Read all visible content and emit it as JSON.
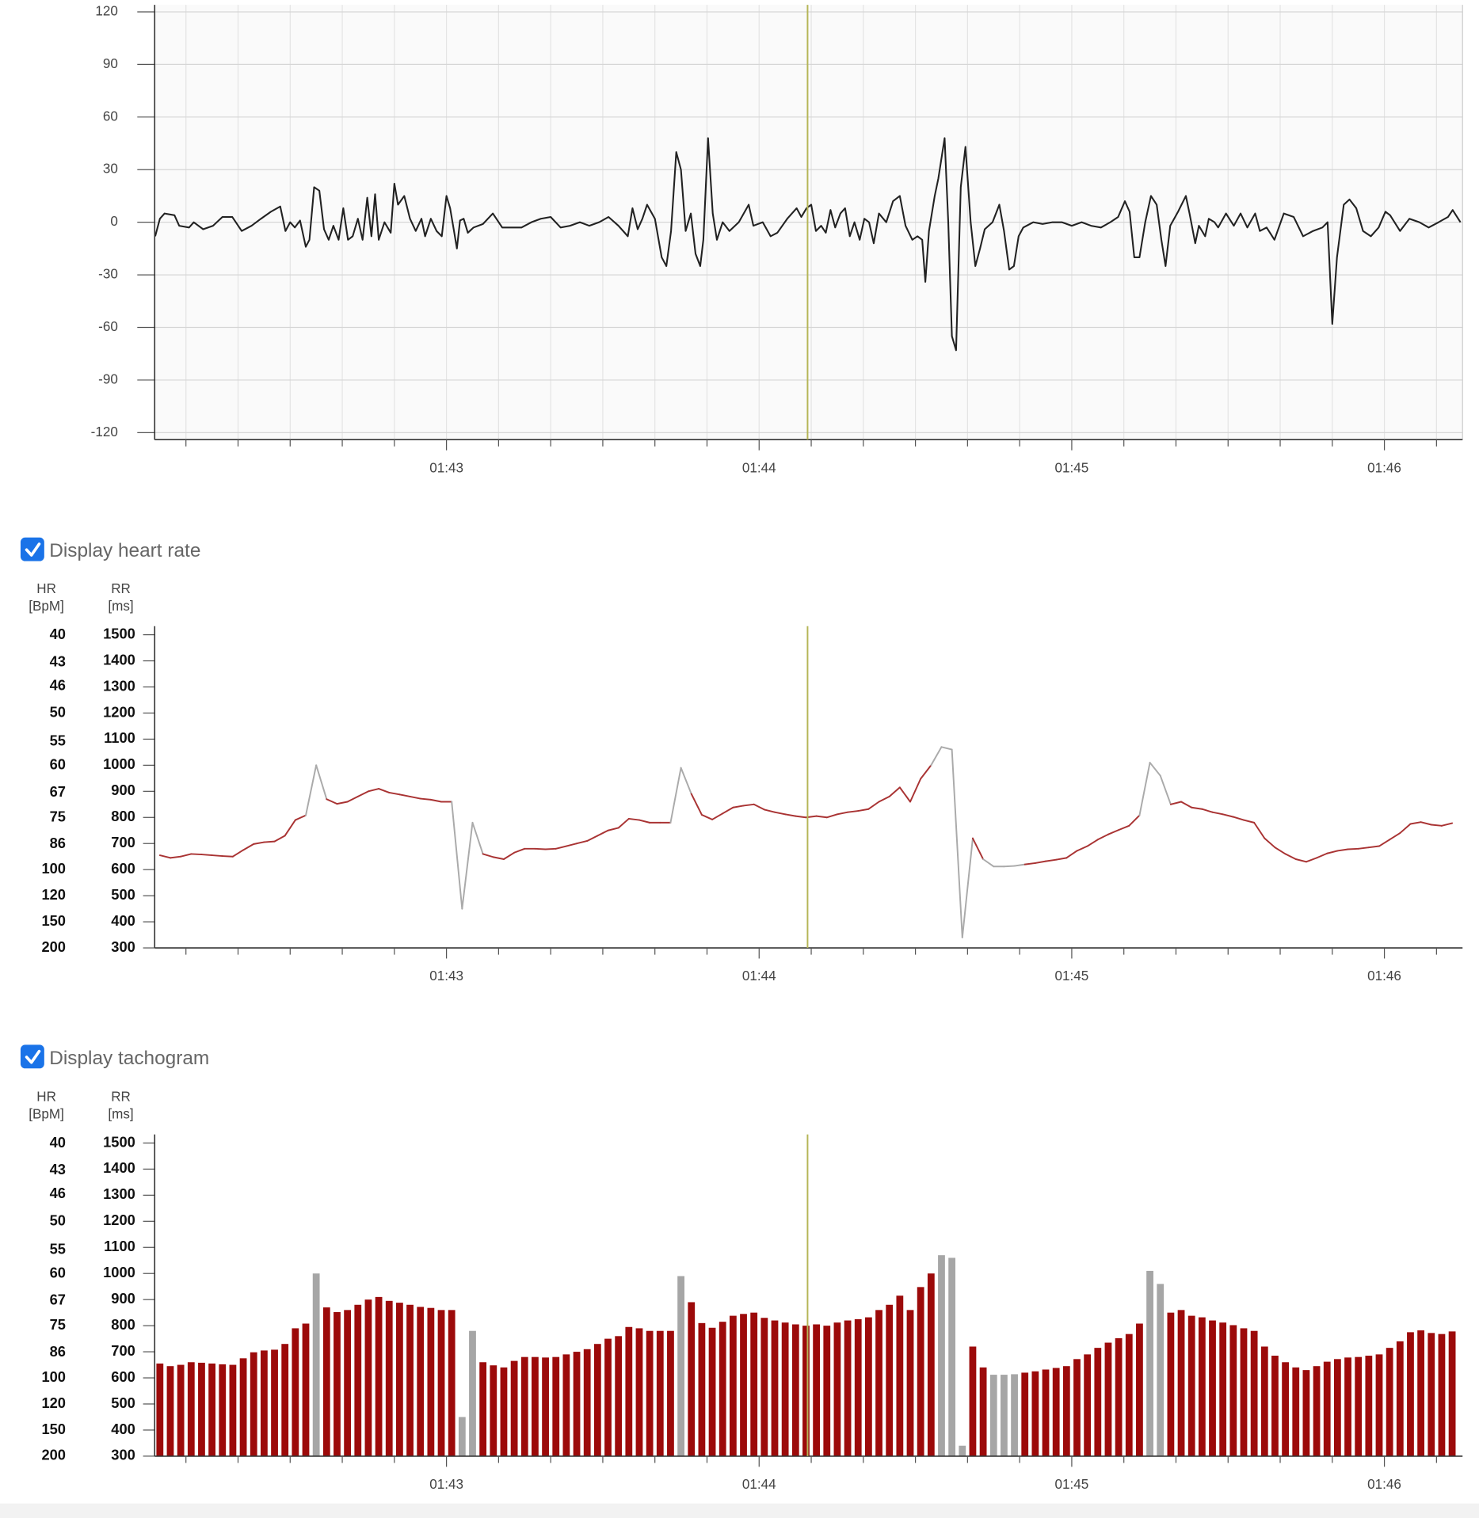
{
  "controls": [
    {
      "label": "Display heart rate",
      "checked": true
    },
    {
      "label": "Display tachogram",
      "checked": true
    }
  ],
  "chart_data": [
    {
      "type": "line",
      "color": "#222222",
      "background": "#fafafa",
      "grid": true,
      "xlim": [
        6124,
        6375
      ],
      "ylim": [
        -124,
        124
      ],
      "xticks": [
        {
          "value": 6180,
          "label": "01:43"
        },
        {
          "value": 6240,
          "label": "01:44"
        },
        {
          "value": 6300,
          "label": "01:45"
        },
        {
          "value": 6360,
          "label": "01:46"
        }
      ],
      "xminorticks": [
        6130,
        6140,
        6150,
        6160,
        6170,
        6190,
        6200,
        6210,
        6220,
        6230,
        6250,
        6260,
        6270,
        6280,
        6290,
        6310,
        6320,
        6330,
        6340,
        6350,
        6370
      ],
      "yticks": [
        -120,
        -90,
        -60,
        -30,
        0,
        30,
        60,
        90,
        120
      ],
      "cursor": {
        "x": 6249.3,
        "color": "#b5b556"
      },
      "x": [
        6124.1,
        6125,
        6125.9,
        6127.8,
        6128.7,
        6130.6,
        6131.5,
        6133.3,
        6135.2,
        6137,
        6138.9,
        6140.7,
        6142.6,
        6144.4,
        6146.3,
        6148.1,
        6149.1,
        6150,
        6150.9,
        6151.9,
        6153,
        6153.7,
        6154.6,
        6155.6,
        6156.5,
        6157.4,
        6158.3,
        6159.3,
        6160.2,
        6161.1,
        6162,
        6163,
        6163.9,
        6164.8,
        6165.6,
        6166.3,
        6167,
        6168.1,
        6169.3,
        6170,
        6170.7,
        6171.9,
        6173,
        6174.1,
        6175.2,
        6175.9,
        6177,
        6178.1,
        6179.1,
        6180,
        6180.7,
        6181.5,
        6182,
        6182.6,
        6183.3,
        6184.1,
        6185.2,
        6187,
        6188.9,
        6190.7,
        6194.4,
        6196.3,
        6198.1,
        6200,
        6201.9,
        6203.7,
        6205.6,
        6207.4,
        6209.3,
        6211.1,
        6213,
        6214.8,
        6215.7,
        6216.7,
        6217.6,
        6218.5,
        6220,
        6221.3,
        6222.2,
        6223.1,
        6224.1,
        6225,
        6225.9,
        6226.9,
        6227.8,
        6228.7,
        6229.3,
        6230.2,
        6231.1,
        6231.9,
        6233,
        6234.3,
        6236.1,
        6238,
        6238.9,
        6240.7,
        6242.2,
        6243.5,
        6245.4,
        6247.2,
        6248.1,
        6249.1,
        6250,
        6250.9,
        6251.9,
        6252.8,
        6253.7,
        6254.6,
        6255.6,
        6256.5,
        6257.4,
        6258.3,
        6259.3,
        6260.2,
        6261.1,
        6262,
        6263,
        6264.4,
        6265.7,
        6267,
        6268.1,
        6269.4,
        6270.4,
        6271.3,
        6271.9,
        6272.6,
        6273.7,
        6274.4,
        6275.6,
        6276.3,
        6277,
        6277.8,
        6278.7,
        6279.6,
        6280.6,
        6281.5,
        6282.4,
        6283.3,
        6284.8,
        6286.1,
        6287,
        6288,
        6288.9,
        6289.8,
        6290.7,
        6292.6,
        6294.4,
        6296.3,
        6298.1,
        6300,
        6301.9,
        6303.7,
        6305.6,
        6307.4,
        6308.9,
        6310.2,
        6311.1,
        6312,
        6313,
        6314.1,
        6315.2,
        6316.3,
        6317.2,
        6318,
        6318.9,
        6320.4,
        6321.9,
        6322.6,
        6323.7,
        6324.4,
        6325.6,
        6326.3,
        6327.4,
        6328.1,
        6329.6,
        6331.1,
        6332.4,
        6333.7,
        6335.2,
        6336.1,
        6337.4,
        6338.9,
        6340.7,
        6342.6,
        6344.4,
        6346.3,
        6348.1,
        6349.1,
        6350,
        6350.9,
        6352.2,
        6353.3,
        6354.6,
        6355.9,
        6357.4,
        6358.9,
        6360.2,
        6361.1,
        6363,
        6364.8,
        6366.7,
        6368.5,
        6370.4,
        6372.2,
        6373.1,
        6374.6
      ],
      "values": [
        -8,
        2,
        5,
        4,
        -2,
        -3,
        0,
        -4,
        -2,
        3,
        3,
        -5,
        -2,
        2,
        6,
        9,
        -5,
        0,
        -3,
        1,
        -14,
        -10,
        20,
        18,
        -4,
        -10,
        -2,
        -10,
        8,
        -10,
        -8,
        2,
        -10,
        14,
        -8,
        16,
        -10,
        0,
        -6,
        22,
        10,
        15,
        2,
        -5,
        2,
        -8,
        2,
        -5,
        -8,
        15,
        8,
        -6,
        -15,
        1,
        2,
        -6,
        -3,
        -1,
        5,
        -3,
        -3,
        0,
        2,
        3,
        -3,
        -2,
        0,
        -2,
        0,
        3,
        -2,
        -8,
        8,
        -4,
        2,
        10,
        2,
        -20,
        -25,
        -5,
        40,
        30,
        -5,
        5,
        -18,
        -25,
        -10,
        48,
        5,
        -10,
        0,
        -5,
        0,
        10,
        -2,
        0,
        -8,
        -6,
        2,
        8,
        3,
        8,
        10,
        -5,
        -2,
        -6,
        7,
        -3,
        5,
        8,
        -8,
        0,
        -10,
        2,
        0,
        -12,
        5,
        0,
        12,
        15,
        -2,
        -10,
        -8,
        -10,
        -34,
        -5,
        15,
        25,
        48,
        0,
        -65,
        -73,
        20,
        43,
        0,
        -25,
        -15,
        -4,
        0,
        10,
        -5,
        -27,
        -25,
        -8,
        -3,
        0,
        -1,
        0,
        0,
        -2,
        0,
        -2,
        -3,
        0,
        3,
        12,
        6,
        -20,
        -20,
        0,
        15,
        10,
        -10,
        -25,
        -2,
        6,
        15,
        5,
        -12,
        -2,
        -8,
        2,
        0,
        -3,
        5,
        -2,
        5,
        -3,
        5,
        -5,
        -3,
        -10,
        5,
        3,
        -8,
        -5,
        -3,
        0,
        -58,
        -20,
        10,
        13,
        8,
        -5,
        -8,
        -3,
        6,
        4,
        -5,
        2,
        0,
        -3,
        0,
        3,
        7,
        0
      ]
    },
    {
      "type": "line",
      "color": "#a93333",
      "artifact_color": "#aaaaaa",
      "grid": false,
      "xlim": [
        6124,
        6375
      ],
      "ylim": [
        300,
        1533
      ],
      "y2lim": [
        39.1,
        200
      ],
      "y2scale": "reciprocal",
      "ylabel": [
        "RR",
        "[ms]"
      ],
      "y2label": [
        "HR",
        "[BpM]"
      ],
      "xticks": [
        {
          "value": 6180,
          "label": "01:43"
        },
        {
          "value": 6240,
          "label": "01:44"
        },
        {
          "value": 6300,
          "label": "01:45"
        },
        {
          "value": 6360,
          "label": "01:46"
        }
      ],
      "xminorticks": [
        6130,
        6140,
        6150,
        6160,
        6170,
        6190,
        6200,
        6210,
        6220,
        6230,
        6250,
        6260,
        6270,
        6280,
        6290,
        6310,
        6320,
        6330,
        6340,
        6350,
        6370
      ],
      "yticks": [
        300,
        400,
        500,
        600,
        700,
        800,
        900,
        1000,
        1100,
        1200,
        1300,
        1400,
        1500
      ],
      "y2ticks": [
        40,
        43,
        46,
        50,
        55,
        60,
        67,
        75,
        86,
        100,
        120,
        150,
        200
      ],
      "cursor": {
        "x": 6249.3,
        "color": "#b5b556"
      },
      "artifacts": [
        15,
        29,
        30,
        50,
        75,
        76,
        77,
        80,
        81,
        82,
        95,
        96
      ],
      "x": [
        6125,
        6127,
        6129,
        6131,
        6133,
        6135,
        6137,
        6139,
        6141,
        6143,
        6145,
        6147,
        6149,
        6151,
        6153,
        6155,
        6157,
        6159,
        6161,
        6163,
        6165,
        6167,
        6169,
        6171,
        6173,
        6175,
        6177,
        6179,
        6181,
        6183,
        6185,
        6187,
        6189,
        6191,
        6193,
        6195,
        6197,
        6199,
        6201,
        6203,
        6205,
        6207,
        6209,
        6211,
        6213,
        6215,
        6217,
        6219,
        6221,
        6223,
        6225,
        6227,
        6229,
        6231,
        6233,
        6235,
        6237,
        6239,
        6241,
        6243,
        6245,
        6247,
        6249,
        6251,
        6253,
        6255,
        6257,
        6259,
        6261,
        6263,
        6265,
        6267,
        6269,
        6271,
        6273,
        6275,
        6277,
        6279,
        6281,
        6283,
        6285,
        6287,
        6289,
        6291,
        6293,
        6295,
        6297,
        6299,
        6301,
        6303,
        6305,
        6307,
        6309,
        6311,
        6313,
        6315,
        6317,
        6319,
        6321,
        6323,
        6325,
        6327,
        6329,
        6331,
        6333,
        6335,
        6337,
        6339,
        6341,
        6343,
        6345,
        6347,
        6349,
        6351,
        6353,
        6355,
        6357,
        6359,
        6361,
        6363,
        6365,
        6367,
        6369,
        6371,
        6373
      ],
      "values": [
        655,
        645,
        650,
        660,
        658,
        655,
        652,
        650,
        675,
        698,
        705,
        708,
        730,
        790,
        808,
        1000,
        870,
        852,
        860,
        880,
        900,
        910,
        895,
        888,
        880,
        872,
        868,
        860,
        860,
        450,
        780,
        660,
        648,
        640,
        665,
        680,
        680,
        678,
        680,
        690,
        700,
        710,
        730,
        750,
        760,
        795,
        790,
        780,
        780,
        780,
        990,
        890,
        810,
        792,
        815,
        838,
        845,
        850,
        830,
        820,
        812,
        805,
        800,
        805,
        800,
        812,
        820,
        825,
        832,
        860,
        880,
        915,
        860,
        948,
        1000,
        1070,
        1060,
        340,
        720,
        640,
        612,
        612,
        614,
        620,
        625,
        632,
        638,
        645,
        672,
        690,
        715,
        735,
        752,
        768,
        808,
        1010,
        960,
        850,
        860,
        838,
        832,
        820,
        812,
        802,
        790,
        780,
        720,
        685,
        660,
        640,
        630,
        645,
        662,
        672,
        678,
        680,
        685,
        690,
        715,
        740,
        775,
        782,
        772,
        768,
        778
      ]
    },
    {
      "type": "bar",
      "color": "#9c0a0a",
      "artifact_color": "#a6a6a6",
      "grid": false,
      "xlim": [
        6124,
        6375
      ],
      "ylim": [
        300,
        1533
      ],
      "y2lim": [
        39.1,
        200
      ],
      "y2scale": "reciprocal",
      "ylabel": [
        "RR",
        "[ms]"
      ],
      "y2label": [
        "HR",
        "[BpM]"
      ],
      "xticks": [
        {
          "value": 6180,
          "label": "01:43"
        },
        {
          "value": 6240,
          "label": "01:44"
        },
        {
          "value": 6300,
          "label": "01:45"
        },
        {
          "value": 6360,
          "label": "01:46"
        }
      ],
      "xminorticks": [
        6130,
        6140,
        6150,
        6160,
        6170,
        6190,
        6200,
        6210,
        6220,
        6230,
        6250,
        6260,
        6270,
        6280,
        6290,
        6310,
        6320,
        6330,
        6340,
        6350,
        6370
      ],
      "yticks": [
        300,
        400,
        500,
        600,
        700,
        800,
        900,
        1000,
        1100,
        1200,
        1300,
        1400,
        1500
      ],
      "y2ticks": [
        40,
        43,
        46,
        50,
        55,
        60,
        67,
        75,
        86,
        100,
        120,
        150,
        200
      ],
      "cursor": {
        "x": 6249.3,
        "color": "#b5b556"
      },
      "artifacts": [
        15,
        29,
        30,
        50,
        75,
        76,
        77,
        80,
        81,
        82,
        95,
        96
      ],
      "x": [
        6125,
        6127,
        6129,
        6131,
        6133,
        6135,
        6137,
        6139,
        6141,
        6143,
        6145,
        6147,
        6149,
        6151,
        6153,
        6155,
        6157,
        6159,
        6161,
        6163,
        6165,
        6167,
        6169,
        6171,
        6173,
        6175,
        6177,
        6179,
        6181,
        6183,
        6185,
        6187,
        6189,
        6191,
        6193,
        6195,
        6197,
        6199,
        6201,
        6203,
        6205,
        6207,
        6209,
        6211,
        6213,
        6215,
        6217,
        6219,
        6221,
        6223,
        6225,
        6227,
        6229,
        6231,
        6233,
        6235,
        6237,
        6239,
        6241,
        6243,
        6245,
        6247,
        6249,
        6251,
        6253,
        6255,
        6257,
        6259,
        6261,
        6263,
        6265,
        6267,
        6269,
        6271,
        6273,
        6275,
        6277,
        6279,
        6281,
        6283,
        6285,
        6287,
        6289,
        6291,
        6293,
        6295,
        6297,
        6299,
        6301,
        6303,
        6305,
        6307,
        6309,
        6311,
        6313,
        6315,
        6317,
        6319,
        6321,
        6323,
        6325,
        6327,
        6329,
        6331,
        6333,
        6335,
        6337,
        6339,
        6341,
        6343,
        6345,
        6347,
        6349,
        6351,
        6353,
        6355,
        6357,
        6359,
        6361,
        6363,
        6365,
        6367,
        6369,
        6371,
        6373
      ],
      "values": [
        655,
        645,
        650,
        660,
        658,
        655,
        652,
        650,
        675,
        698,
        705,
        708,
        730,
        790,
        808,
        1000,
        870,
        852,
        860,
        880,
        900,
        910,
        895,
        888,
        880,
        872,
        868,
        860,
        860,
        450,
        780,
        660,
        648,
        640,
        665,
        680,
        680,
        678,
        680,
        690,
        700,
        710,
        730,
        750,
        760,
        795,
        790,
        780,
        780,
        780,
        990,
        890,
        810,
        792,
        815,
        838,
        845,
        850,
        830,
        820,
        812,
        805,
        800,
        805,
        800,
        812,
        820,
        825,
        832,
        860,
        880,
        915,
        860,
        948,
        1000,
        1070,
        1060,
        340,
        720,
        640,
        612,
        612,
        614,
        620,
        625,
        632,
        638,
        645,
        672,
        690,
        715,
        735,
        752,
        768,
        808,
        1010,
        960,
        850,
        860,
        838,
        832,
        820,
        812,
        802,
        790,
        780,
        720,
        685,
        660,
        640,
        630,
        645,
        662,
        672,
        678,
        680,
        685,
        690,
        715,
        740,
        775,
        782,
        772,
        768,
        778
      ]
    }
  ]
}
